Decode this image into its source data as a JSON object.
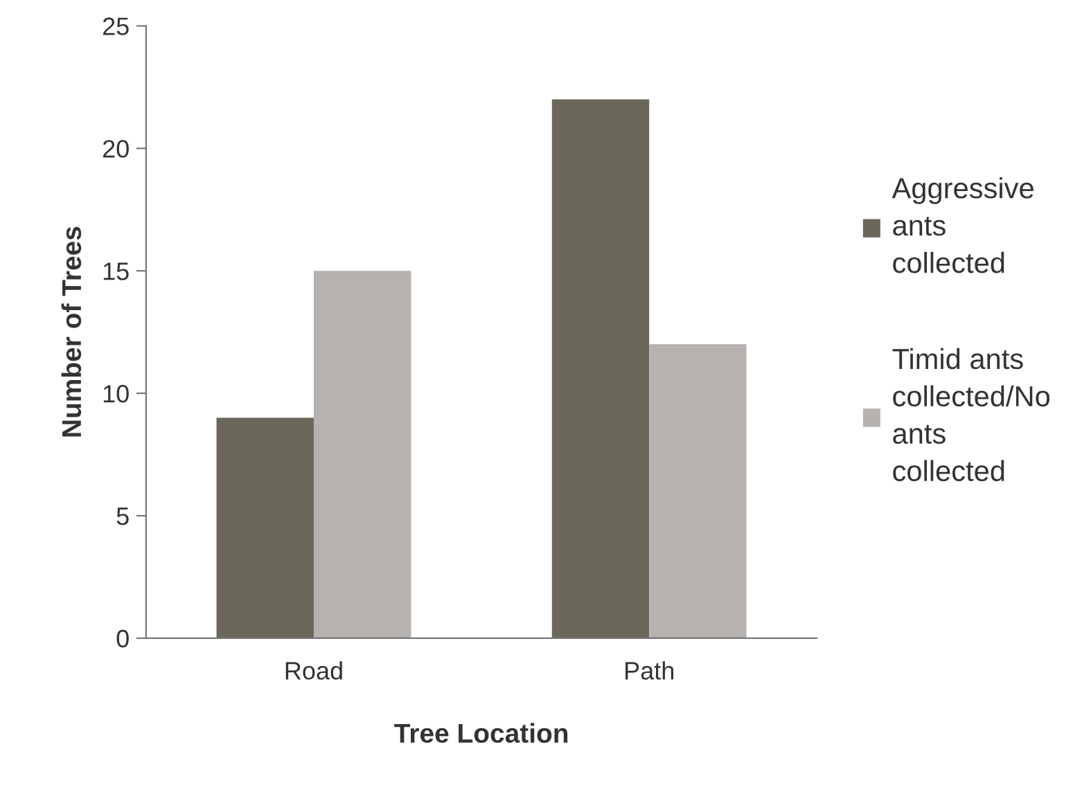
{
  "chart_data": {
    "type": "bar",
    "xlabel": "Tree Location",
    "ylabel": "Number of Trees",
    "categories": [
      "Road",
      "Path"
    ],
    "series": [
      {
        "name": "Aggressive\nants\ncollected",
        "color": "#6b675a",
        "values": [
          9,
          22
        ]
      },
      {
        "name": "Timid ants\ncollected/No\nants\ncollected",
        "color": "#b5b2b0",
        "values": [
          15,
          12
        ]
      }
    ],
    "ylim": [
      0,
      25
    ],
    "yticks": [
      0,
      5,
      10,
      15,
      20,
      25
    ],
    "grid": false,
    "legend": "right"
  }
}
